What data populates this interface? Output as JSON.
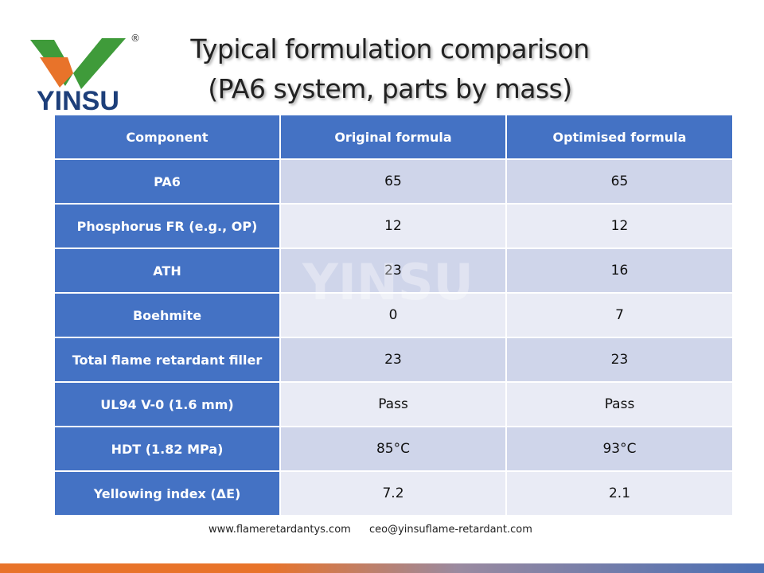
{
  "logo": {
    "text": "YINSU",
    "mark": "®"
  },
  "header": {
    "title_line1": "Typical formulation comparison",
    "title_line2": "(PA6 system, parts by mass)"
  },
  "watermark": "YINSU",
  "table": {
    "columns": [
      "Component",
      "Original formula",
      "Optimised formula"
    ],
    "rows": [
      [
        "PA6",
        65,
        65
      ],
      [
        "Phosphorus FR (e.g., OP)",
        12,
        12
      ],
      [
        "ATH",
        23,
        16
      ],
      [
        "Boehmite",
        0,
        7
      ],
      [
        "Total flame retardant filler",
        23,
        23
      ],
      [
        "UL94 V-0 (1.6 mm)",
        "Pass",
        "Pass"
      ],
      [
        "HDT (1.82 MPa)",
        "85°C",
        "93°C"
      ],
      [
        "Yellowing index (ΔE)",
        7.2,
        2.1
      ]
    ]
  },
  "footer": {
    "website": "www.flameretardantys.com",
    "email": "ceo@yinsuflame-retardant.com"
  }
}
